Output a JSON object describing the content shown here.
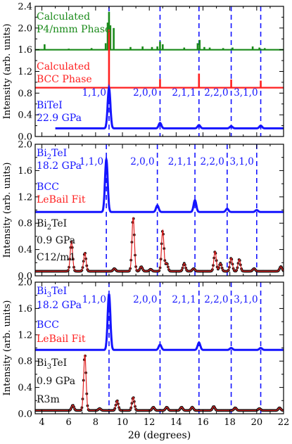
{
  "colors": {
    "calc_p4": "#1a8a1a",
    "calc_bcc": "#ff1f1f",
    "measured": "#1414ff",
    "observed": "#111111",
    "fit": "#e02020",
    "dashed": "#1414ff"
  },
  "chart_data": [
    {
      "type": "line",
      "title": "",
      "xlabel": "",
      "ylabel": "Intensity (arb. units)",
      "xlim": [
        3.5,
        22
      ],
      "ylim": [
        0,
        2.4
      ],
      "y_ticks": [
        "0.0",
        "0.4",
        "0.8",
        "1.2",
        "1.6",
        "2.0",
        "2.4"
      ],
      "text_labels": [
        {
          "text": "Calculated",
          "color": "#1a8a1a"
        },
        {
          "text": "P4/nmm Phase",
          "color": "#1a8a1a"
        },
        {
          "text": "Calculated",
          "color": "#ff1f1f"
        },
        {
          "text": "BCC Phase",
          "color": "#ff1f1f"
        },
        {
          "text": "BiTeI",
          "color": "#1414ff"
        },
        {
          "text": "22.9 GPa",
          "color": "#1414ff"
        }
      ],
      "hkl_labels": [
        {
          "text": "1,1,0",
          "x": 9.0
        },
        {
          "text": "2,0,0",
          "x": 12.8
        },
        {
          "text": "2,1,1",
          "x": 15.7
        },
        {
          "text": "2,2,0",
          "x": 18.1
        },
        {
          "text": "3,1,0",
          "x": 20.3
        }
      ],
      "dashed_lines": [
        9.0,
        12.8,
        15.7,
        18.1,
        20.3
      ],
      "series": [
        {
          "role": "calc_p4",
          "baseline": 1.6,
          "peaks": [
            [
              4.2,
              0.1
            ],
            [
              6.0,
              0.02
            ],
            [
              7.7,
              0.03
            ],
            [
              8.75,
              0.12
            ],
            [
              8.9,
              0.5
            ],
            [
              9.0,
              0.7
            ],
            [
              9.1,
              0.45
            ],
            [
              9.35,
              0.4
            ],
            [
              10.6,
              0.05
            ],
            [
              11.5,
              0.06
            ],
            [
              12.2,
              0.05
            ],
            [
              12.6,
              0.06
            ],
            [
              12.8,
              0.15
            ],
            [
              13.0,
              0.1
            ],
            [
              14.6,
              0.04
            ],
            [
              15.6,
              0.12
            ],
            [
              15.75,
              0.18
            ],
            [
              16.1,
              0.05
            ],
            [
              16.5,
              0.04
            ],
            [
              17.5,
              0.03
            ],
            [
              18.2,
              0.04
            ],
            [
              19.7,
              0.06
            ],
            [
              20.2,
              0.04
            ],
            [
              20.6,
              0.03
            ]
          ]
        },
        {
          "role": "calc_bcc",
          "baseline": 0.9,
          "peaks": [
            [
              9.0,
              1.08
            ],
            [
              12.8,
              0.16
            ],
            [
              15.7,
              0.26
            ],
            [
              18.1,
              0.15
            ],
            [
              20.3,
              0.13
            ]
          ]
        },
        {
          "role": "measured",
          "baseline": 0.15,
          "x_start": 5.0,
          "x_end": 22,
          "peaks": [
            [
              9.0,
              0.75
            ],
            [
              12.8,
              0.1
            ],
            [
              15.7,
              0.06
            ],
            [
              18.1,
              0.04
            ],
            [
              20.3,
              0.05
            ]
          ]
        }
      ]
    },
    {
      "type": "line",
      "title": "",
      "xlabel": "",
      "ylabel": "Intensity (arb. units)",
      "xlim": [
        3.5,
        22
      ],
      "ylim": [
        0,
        2.0
      ],
      "y_ticks": [
        "0.0",
        "0.4",
        "0.8",
        "1.2",
        "1.6",
        "2.0"
      ],
      "text_labels": [
        {
          "text": "Bi2TeI",
          "color": "#1414ff"
        },
        {
          "text": "18.2 GPa",
          "color": "#1414ff"
        },
        {
          "text": "BCC",
          "color": "#1414ff"
        },
        {
          "text": "LeBail Fit",
          "color": "#ff1f1f"
        },
        {
          "text": "Bi2TeI",
          "color": "#111111"
        },
        {
          "text": "0.9 GPa",
          "color": "#111111"
        },
        {
          "text": "C12/m1",
          "color": "#111111"
        }
      ],
      "hkl_labels": [
        {
          "text": "1,1,0",
          "x": 8.8
        },
        {
          "text": "2,0,0",
          "x": 12.6
        },
        {
          "text": "2,1,1",
          "x": 15.4
        },
        {
          "text": "2,2,0",
          "x": 17.8
        },
        {
          "text": "3,1,0",
          "x": 20.0
        }
      ],
      "dashed_lines": [
        8.8,
        12.6,
        15.4,
        17.8,
        20.0
      ],
      "series": [
        {
          "role": "measured",
          "baseline": 0.97,
          "x_start": 3.5,
          "x_end": 22,
          "peaks": [
            [
              8.8,
              0.8
            ],
            [
              12.6,
              0.1
            ],
            [
              15.4,
              0.18
            ],
            [
              17.8,
              0.05
            ],
            [
              20.0,
              0.03
            ]
          ]
        },
        {
          "role": "observed",
          "baseline": 0.07,
          "x_start": 3.5,
          "x_end": 22,
          "peaks": [
            [
              6.2,
              0.45
            ],
            [
              7.2,
              0.28
            ],
            [
              9.4,
              0.04
            ],
            [
              10.8,
              0.82
            ],
            [
              11.4,
              0.07
            ],
            [
              12.1,
              0.03
            ],
            [
              13.0,
              0.62
            ],
            [
              13.3,
              0.12
            ],
            [
              14.6,
              0.12
            ],
            [
              15.3,
              0.04
            ],
            [
              16.9,
              0.3
            ],
            [
              17.3,
              0.12
            ],
            [
              18.1,
              0.2
            ],
            [
              18.7,
              0.18
            ],
            [
              19.8,
              0.04
            ],
            [
              21.8,
              0.07
            ]
          ]
        },
        {
          "role": "fit",
          "baseline": 0.07,
          "x_start": 3.5,
          "x_end": 22,
          "peaks": [
            [
              6.2,
              0.45
            ],
            [
              7.2,
              0.28
            ],
            [
              9.4,
              0.04
            ],
            [
              10.8,
              0.82
            ],
            [
              11.4,
              0.07
            ],
            [
              12.1,
              0.03
            ],
            [
              13.0,
              0.62
            ],
            [
              13.3,
              0.12
            ],
            [
              14.6,
              0.12
            ],
            [
              15.3,
              0.04
            ],
            [
              16.9,
              0.3
            ],
            [
              17.3,
              0.12
            ],
            [
              18.1,
              0.2
            ],
            [
              18.7,
              0.18
            ],
            [
              19.8,
              0.04
            ],
            [
              21.8,
              0.07
            ]
          ]
        }
      ]
    },
    {
      "type": "line",
      "title": "",
      "xlabel": "2θ (degrees)",
      "ylabel": "Intensity (arb. units)",
      "xlim": [
        3.5,
        22
      ],
      "ylim": [
        0,
        2.0
      ],
      "y_ticks": [
        "0.0",
        "0.4",
        "0.8",
        "1.2",
        "1.6",
        "2.0"
      ],
      "x_ticks": [
        "4",
        "6",
        "8",
        "10",
        "12",
        "14",
        "16",
        "18",
        "20",
        "22"
      ],
      "text_labels": [
        {
          "text": "Bi3TeI",
          "color": "#1414ff"
        },
        {
          "text": "18.2 GPa",
          "color": "#1414ff"
        },
        {
          "text": "BCC",
          "color": "#1414ff"
        },
        {
          "text": "LeBail Fit",
          "color": "#ff1f1f"
        },
        {
          "text": "Bi3TeI",
          "color": "#111111"
        },
        {
          "text": "0.9 GPa",
          "color": "#111111"
        },
        {
          "text": "R3m",
          "color": "#111111"
        }
      ],
      "hkl_labels": [
        {
          "text": "1,1,0",
          "x": 9.0
        },
        {
          "text": "2,0,0",
          "x": 12.8
        },
        {
          "text": "2,1,1",
          "x": 15.7
        },
        {
          "text": "2,2,0",
          "x": 18.1
        },
        {
          "text": "3,1,0",
          "x": 20.3
        }
      ],
      "dashed_lines": [
        9.0,
        12.8,
        15.7,
        18.1,
        20.3
      ],
      "series": [
        {
          "role": "measured",
          "baseline": 0.97,
          "x_start": 3.5,
          "x_end": 22,
          "peaks": [
            [
              9.0,
              0.85
            ],
            [
              12.8,
              0.08
            ],
            [
              15.7,
              0.11
            ],
            [
              18.1,
              0.03
            ],
            [
              20.3,
              0.03
            ]
          ]
        },
        {
          "role": "observed",
          "baseline": 0.05,
          "x_start": 3.5,
          "x_end": 22,
          "peaks": [
            [
              6.3,
              0.08
            ],
            [
              7.2,
              0.85
            ],
            [
              8.3,
              0.03
            ],
            [
              9.6,
              0.15
            ],
            [
              10.8,
              0.2
            ],
            [
              12.3,
              0.05
            ],
            [
              13.3,
              0.05
            ],
            [
              14.4,
              0.05
            ],
            [
              15.2,
              0.05
            ],
            [
              16.8,
              0.06
            ],
            [
              18.4,
              0.04
            ],
            [
              20.2,
              0.03
            ],
            [
              21.7,
              0.04
            ]
          ]
        },
        {
          "role": "fit",
          "baseline": 0.05,
          "x_start": 3.5,
          "x_end": 22,
          "peaks": [
            [
              6.3,
              0.08
            ],
            [
              7.2,
              0.85
            ],
            [
              8.3,
              0.03
            ],
            [
              9.6,
              0.15
            ],
            [
              10.8,
              0.2
            ],
            [
              12.3,
              0.05
            ],
            [
              13.3,
              0.05
            ],
            [
              14.4,
              0.05
            ],
            [
              15.2,
              0.05
            ],
            [
              16.8,
              0.06
            ],
            [
              18.4,
              0.04
            ],
            [
              20.2,
              0.03
            ],
            [
              21.7,
              0.04
            ]
          ]
        }
      ]
    }
  ]
}
